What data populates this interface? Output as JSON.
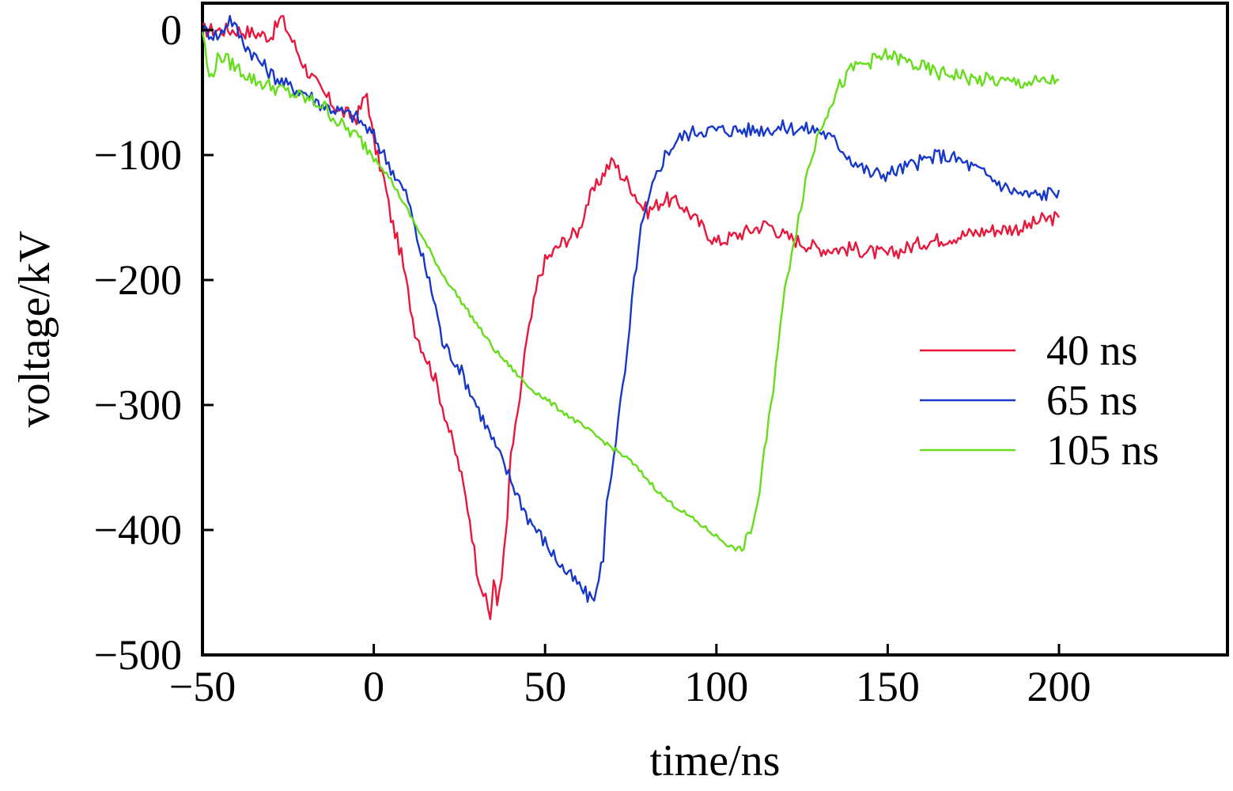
{
  "chart_data": {
    "type": "line",
    "title": "",
    "xlabel": "time/ns",
    "ylabel": "voltage/kV",
    "xlim": [
      -50,
      250
    ],
    "ylim": [
      -500,
      20
    ],
    "x_ticks": [
      -50,
      0,
      50,
      100,
      150,
      200
    ],
    "x_tick_labels": [
      "−50",
      "0",
      "50",
      "100",
      "150",
      "200"
    ],
    "y_ticks": [
      0,
      -100,
      -200,
      -300,
      -400,
      -500
    ],
    "y_tick_labels": [
      "0",
      "−100",
      "−200",
      "−300",
      "−400",
      "−500"
    ],
    "grid": false,
    "legend_position": "right",
    "series": [
      {
        "name": "40 ns",
        "color": "#e8183c",
        "x": [
          -50,
          -40,
          -30,
          -27,
          -20,
          -15,
          -10,
          -5,
          -2,
          0,
          3,
          5,
          8,
          10,
          12,
          15,
          18,
          20,
          22,
          25,
          28,
          30,
          32,
          34,
          35,
          36,
          38,
          39,
          40,
          42,
          44,
          46,
          48,
          50,
          55,
          60,
          62,
          65,
          68,
          70,
          72,
          75,
          78,
          80,
          85,
          90,
          95,
          100,
          105,
          110,
          115,
          120,
          125,
          130,
          140,
          150,
          160,
          170,
          180,
          190,
          195,
          200
        ],
        "y": [
          0,
          0,
          -5,
          10,
          -30,
          -50,
          -65,
          -70,
          -50,
          -90,
          -120,
          -150,
          -180,
          -210,
          -240,
          -260,
          -280,
          -300,
          -320,
          -350,
          -390,
          -430,
          -450,
          -470,
          -440,
          -460,
          -420,
          -390,
          -340,
          -310,
          -260,
          -230,
          -200,
          -185,
          -170,
          -160,
          -140,
          -125,
          -110,
          -105,
          -115,
          -125,
          -140,
          -145,
          -135,
          -140,
          -155,
          -170,
          -165,
          -160,
          -155,
          -165,
          -170,
          -175,
          -175,
          -180,
          -170,
          -165,
          -160,
          -158,
          -152,
          -150
        ]
      },
      {
        "name": "65 ns",
        "color": "#1838c8",
        "x": [
          -50,
          -45,
          -42,
          -38,
          -35,
          -30,
          -25,
          -20,
          -15,
          -10,
          -5,
          0,
          3,
          5,
          8,
          10,
          12,
          15,
          18,
          20,
          25,
          30,
          35,
          40,
          45,
          50,
          55,
          60,
          63,
          65,
          67,
          68,
          70,
          72,
          74,
          76,
          78,
          80,
          82,
          85,
          88,
          90,
          95,
          100,
          110,
          120,
          130,
          135,
          140,
          145,
          150,
          155,
          160,
          165,
          170,
          175,
          180,
          185,
          190,
          195,
          200
        ],
        "y": [
          0,
          -5,
          10,
          -10,
          -20,
          -35,
          -45,
          -50,
          -60,
          -65,
          -70,
          -85,
          -100,
          -110,
          -125,
          -135,
          -160,
          -190,
          -220,
          -250,
          -270,
          -300,
          -330,
          -360,
          -390,
          -410,
          -430,
          -445,
          -455,
          -450,
          -420,
          -380,
          -340,
          -300,
          -260,
          -200,
          -160,
          -140,
          -120,
          -100,
          -90,
          -85,
          -80,
          -80,
          -80,
          -78,
          -80,
          -90,
          -105,
          -115,
          -115,
          -110,
          -105,
          -100,
          -103,
          -110,
          -118,
          -127,
          -132,
          -132,
          -128
        ]
      },
      {
        "name": "105 ns",
        "color": "#66dd1a",
        "x": [
          -50,
          -48,
          -45,
          -40,
          -35,
          -30,
          -25,
          -20,
          -15,
          -10,
          -5,
          0,
          5,
          10,
          15,
          20,
          25,
          30,
          35,
          40,
          45,
          50,
          55,
          60,
          65,
          70,
          75,
          80,
          85,
          90,
          95,
          100,
          105,
          108,
          110,
          112,
          114,
          116,
          118,
          120,
          122,
          124,
          126,
          128,
          130,
          133,
          136,
          140,
          145,
          150,
          155,
          160,
          165,
          170,
          175,
          180,
          185,
          190,
          195,
          200
        ],
        "y": [
          0,
          -40,
          -20,
          -30,
          -40,
          -45,
          -50,
          -55,
          -60,
          -75,
          -85,
          -100,
          -120,
          -145,
          -170,
          -195,
          -215,
          -235,
          -255,
          -270,
          -285,
          -295,
          -305,
          -315,
          -325,
          -335,
          -345,
          -360,
          -375,
          -385,
          -395,
          -405,
          -415,
          -415,
          -400,
          -380,
          -340,
          -300,
          -250,
          -210,
          -175,
          -150,
          -120,
          -100,
          -80,
          -60,
          -45,
          -30,
          -25,
          -20,
          -25,
          -30,
          -35,
          -35,
          -40,
          -40,
          -42,
          -42,
          -42,
          -40
        ]
      }
    ]
  }
}
